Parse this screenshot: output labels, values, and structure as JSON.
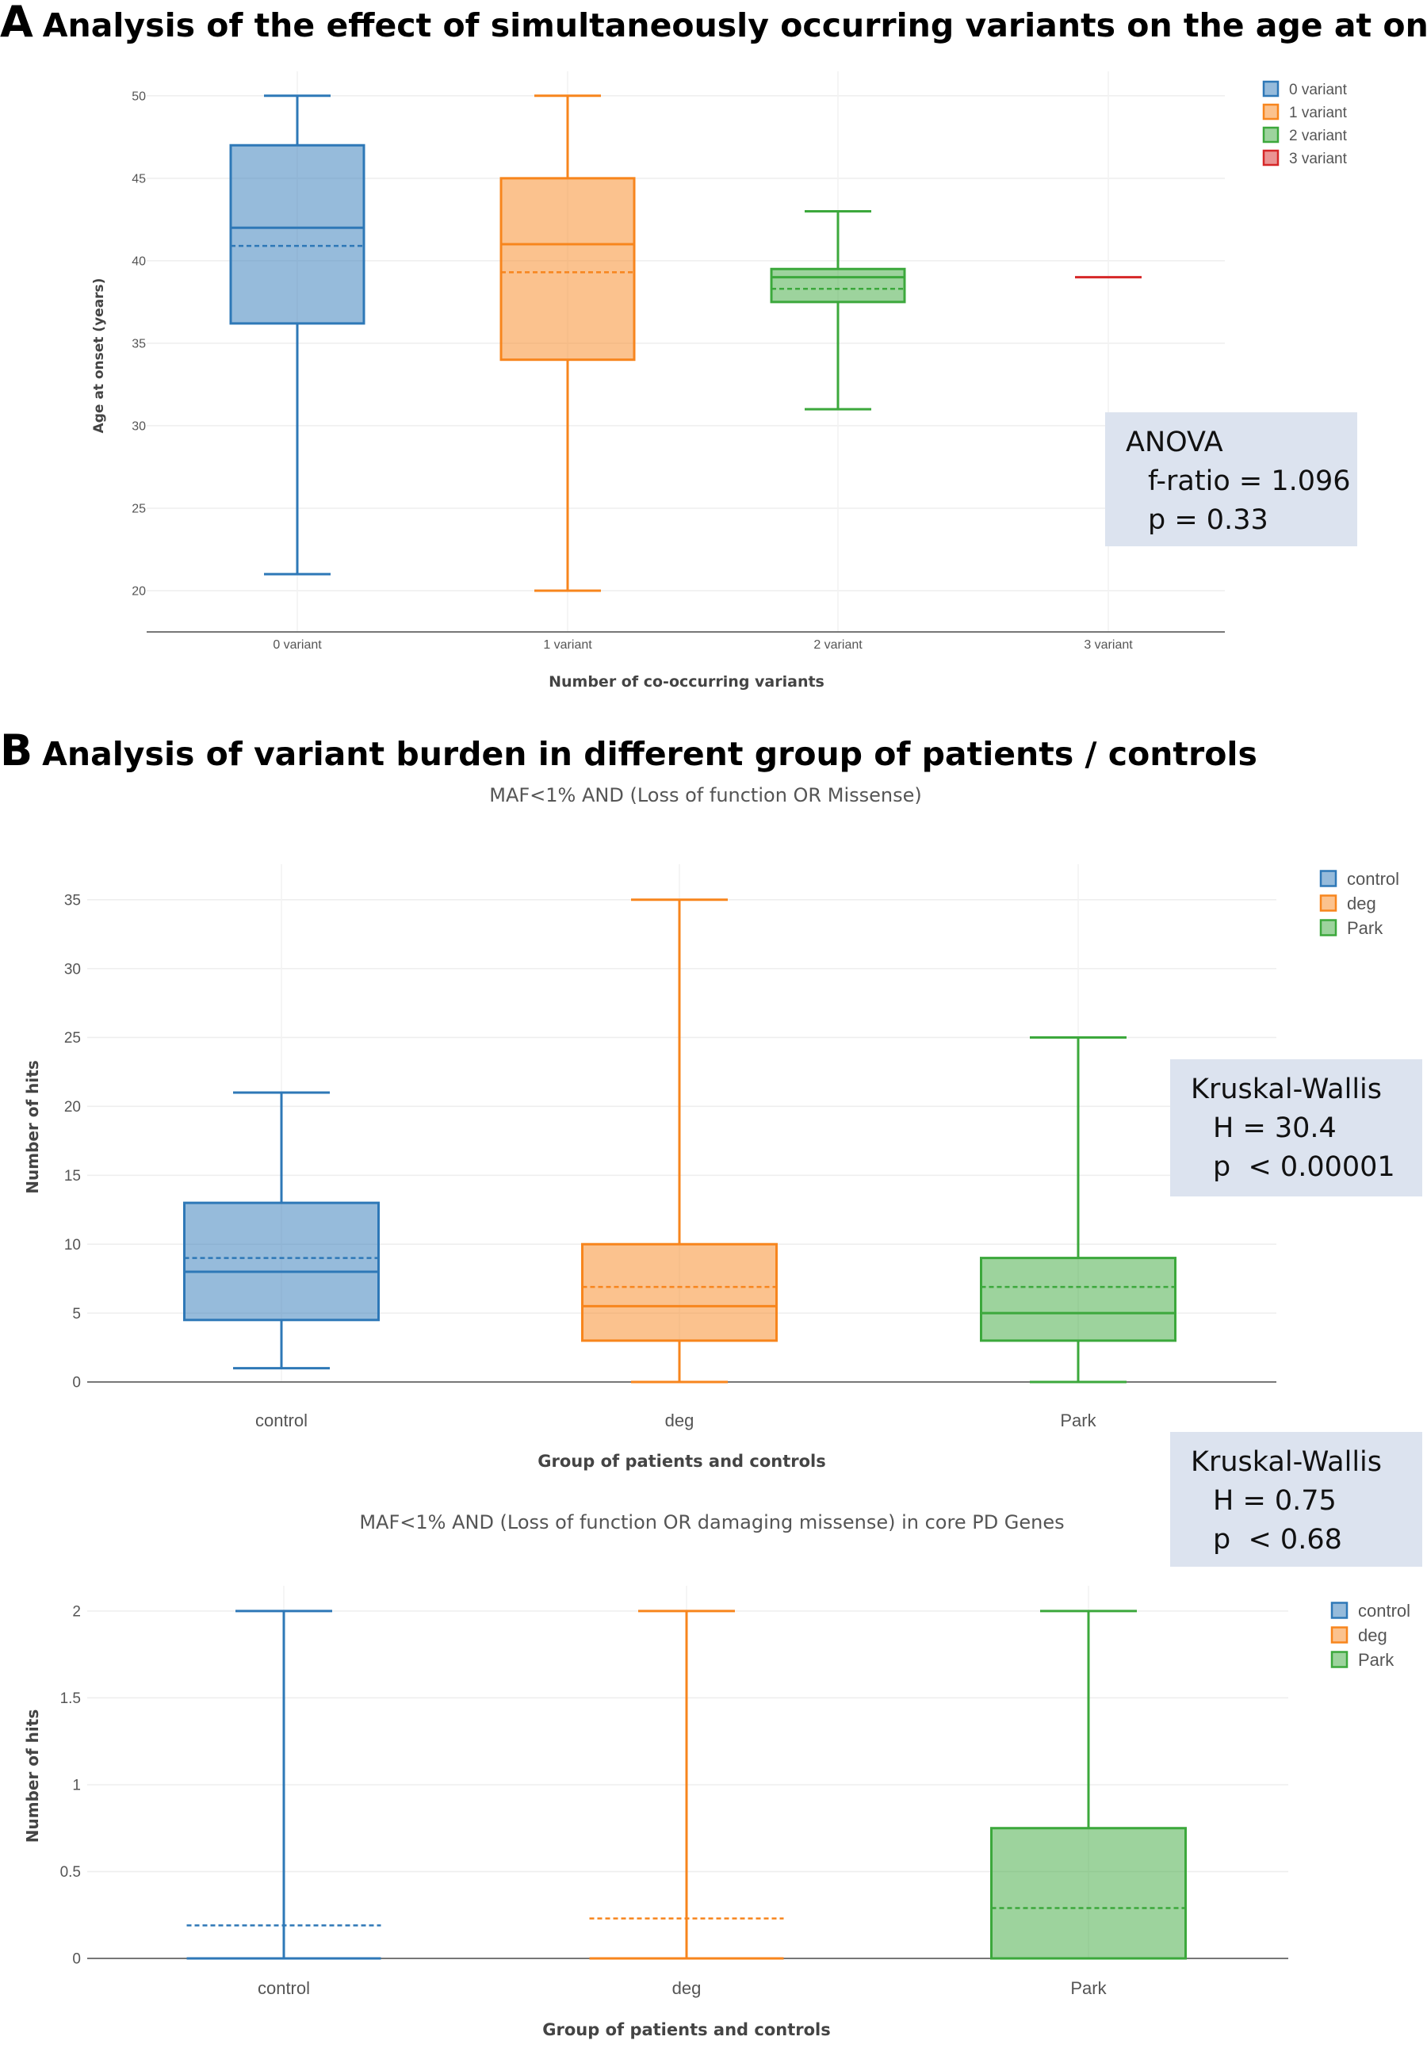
{
  "panels": {
    "a": {
      "letter": "A",
      "title": "Analysis of the effect of simultaneously occurring variants on the age at onset"
    },
    "b": {
      "letter": "B",
      "title": "Analysis of variant burden in different group of patients / controls"
    }
  },
  "stat_boxes": [
    {
      "head": "ANOVA",
      "line1": "f-ratio = 1.096",
      "line2": "p = 0.33"
    },
    {
      "head": "Kruskal-Wallis",
      "line1": "H = 30.4",
      "line2": "p  < 0.00001"
    },
    {
      "head": "Kruskal-Wallis",
      "line1": "H = 0.75",
      "line2": "p  < 0.68"
    }
  ],
  "colors": {
    "blue": "#2e78b7",
    "orange": "#f7851d",
    "green": "#3ca83c",
    "red": "#d62728",
    "stat_box": "#dce3ef"
  },
  "chart_data": [
    {
      "type": "box",
      "title": "",
      "xlabel": "Number of co-occurring variants",
      "ylabel": "Age at onset (years)",
      "ylim": [
        17.5,
        51
      ],
      "yticks": [
        20,
        25,
        30,
        35,
        40,
        45,
        50
      ],
      "categories": [
        "0 variant",
        "1 variant",
        "2 variant",
        "3 variant"
      ],
      "legend": [
        "0 variant",
        "1 variant",
        "2 variant",
        "3 variant"
      ],
      "legend_position": "top-right",
      "series": [
        {
          "name": "0 variant",
          "color": "#2e78b7",
          "min": 21,
          "q1": 36.2,
          "median": 42,
          "q3": 47,
          "max": 50,
          "mean": 40.9
        },
        {
          "name": "1 variant",
          "color": "#f7851d",
          "min": 20,
          "q1": 34,
          "median": 41,
          "q3": 45,
          "max": 50,
          "mean": 39.3
        },
        {
          "name": "2 variant",
          "color": "#3ca83c",
          "min": 31,
          "q1": 37.5,
          "median": 39,
          "q3": 39.5,
          "max": 43,
          "mean": 38.3
        },
        {
          "name": "3 variant",
          "color": "#d62728",
          "min": 39,
          "q1": 39,
          "median": 39,
          "q3": 39,
          "max": 39,
          "mean": 39
        }
      ]
    },
    {
      "type": "box",
      "title": "MAF<1% AND (Loss of function OR Missense)",
      "xlabel": "Group of patients and controls",
      "ylabel": "Number of hits",
      "ylim": [
        0,
        37
      ],
      "yticks": [
        0,
        5,
        10,
        15,
        20,
        25,
        30,
        35
      ],
      "categories": [
        "control",
        "deg",
        "Park"
      ],
      "legend": [
        "control",
        "deg",
        "Park"
      ],
      "legend_position": "top-right",
      "series": [
        {
          "name": "control",
          "color": "#2e78b7",
          "min": 1,
          "q1": 4.5,
          "median": 8,
          "q3": 13,
          "max": 21,
          "mean": 9
        },
        {
          "name": "deg",
          "color": "#f7851d",
          "min": 0,
          "q1": 3,
          "median": 5.5,
          "q3": 10,
          "max": 35,
          "mean": 6.9
        },
        {
          "name": "Park",
          "color": "#3ca83c",
          "min": 0,
          "q1": 3,
          "median": 5,
          "q3": 9,
          "max": 25,
          "mean": 6.9
        }
      ]
    },
    {
      "type": "box",
      "title": "MAF<1% AND (Loss of function OR damaging missense) in core PD Genes",
      "xlabel": "Group of patients and controls",
      "ylabel": "Number of hits",
      "ylim": [
        0,
        2.1
      ],
      "yticks": [
        0,
        0.5,
        1,
        1.5,
        2
      ],
      "ytick_labels": [
        "0",
        "0.5",
        "1",
        "1.5",
        "2"
      ],
      "categories": [
        "control",
        "deg",
        "Park"
      ],
      "legend": [
        "control",
        "deg",
        "Park"
      ],
      "legend_position": "top-right",
      "series": [
        {
          "name": "control",
          "color": "#2e78b7",
          "min": 0,
          "q1": 0,
          "median": 0,
          "q3": 0,
          "max": 2,
          "mean": 0.19
        },
        {
          "name": "deg",
          "color": "#f7851d",
          "min": 0,
          "q1": 0,
          "median": 0,
          "q3": 0,
          "max": 2,
          "mean": 0.23
        },
        {
          "name": "Park",
          "color": "#3ca83c",
          "min": 0,
          "q1": 0,
          "median": 0,
          "q3": 0.75,
          "max": 2,
          "mean": 0.29
        }
      ]
    }
  ]
}
